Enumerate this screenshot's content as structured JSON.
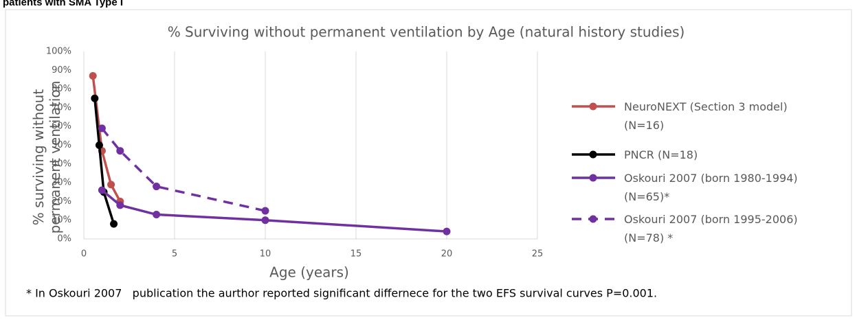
{
  "header": "patients with SMA Type I",
  "chart_data": {
    "type": "line",
    "title": "% Surviving without permanent ventilation by Age (natural history studies)",
    "x_label": "Age (years)",
    "y_label": "% surviving without permanent ventilation",
    "footnote": "* In Oskouri 2007   publication the aurthor reported significant differnece for the two EFS survival curves P=0.001.",
    "xlim": [
      0,
      25
    ],
    "xticks": [
      0,
      5,
      10,
      15,
      20,
      25
    ],
    "ylim": [
      0,
      100
    ],
    "yticks": [
      {
        "value": 0,
        "label": "0%"
      },
      {
        "value": 10,
        "label": "10%"
      },
      {
        "value": 20,
        "label": "20%"
      },
      {
        "value": 30,
        "label": "30%"
      },
      {
        "value": 40,
        "label": "40%"
      },
      {
        "value": 50,
        "label": "50%"
      },
      {
        "value": 60,
        "label": "60%"
      },
      {
        "value": 70,
        "label": "70%"
      },
      {
        "value": 80,
        "label": "80%"
      },
      {
        "value": 90,
        "label": "90%"
      },
      {
        "value": 100,
        "label": "100%"
      }
    ],
    "grid": "x",
    "legend": "right",
    "series": [
      {
        "name": "NeuroNEXT (Section 3 model)\n(N=16)",
        "color": "#c0504d",
        "line_style": "solid",
        "x": [
          0.5,
          1,
          1.5,
          2
        ],
        "values": [
          87,
          47,
          29,
          20
        ]
      },
      {
        "name": "PNCR (N=18)",
        "color": "#000000",
        "line_style": "solid",
        "x": [
          0.6,
          0.85,
          1.1,
          1.65
        ],
        "values": [
          75,
          50,
          25,
          8
        ]
      },
      {
        "name": "Oskouri 2007 (born 1980-1994)\n(N=65)*",
        "color": "#7030a0",
        "line_style": "solid",
        "x": [
          1,
          2,
          4,
          10,
          20
        ],
        "values": [
          26,
          18,
          13,
          10,
          4
        ]
      },
      {
        "name": "Oskouri 2007 (born 1995-2006)\n(N=78) *",
        "color": "#7030a0",
        "line_style": "dashed",
        "x": [
          1,
          2,
          4,
          10
        ],
        "values": [
          59,
          47,
          28,
          15
        ]
      }
    ]
  }
}
